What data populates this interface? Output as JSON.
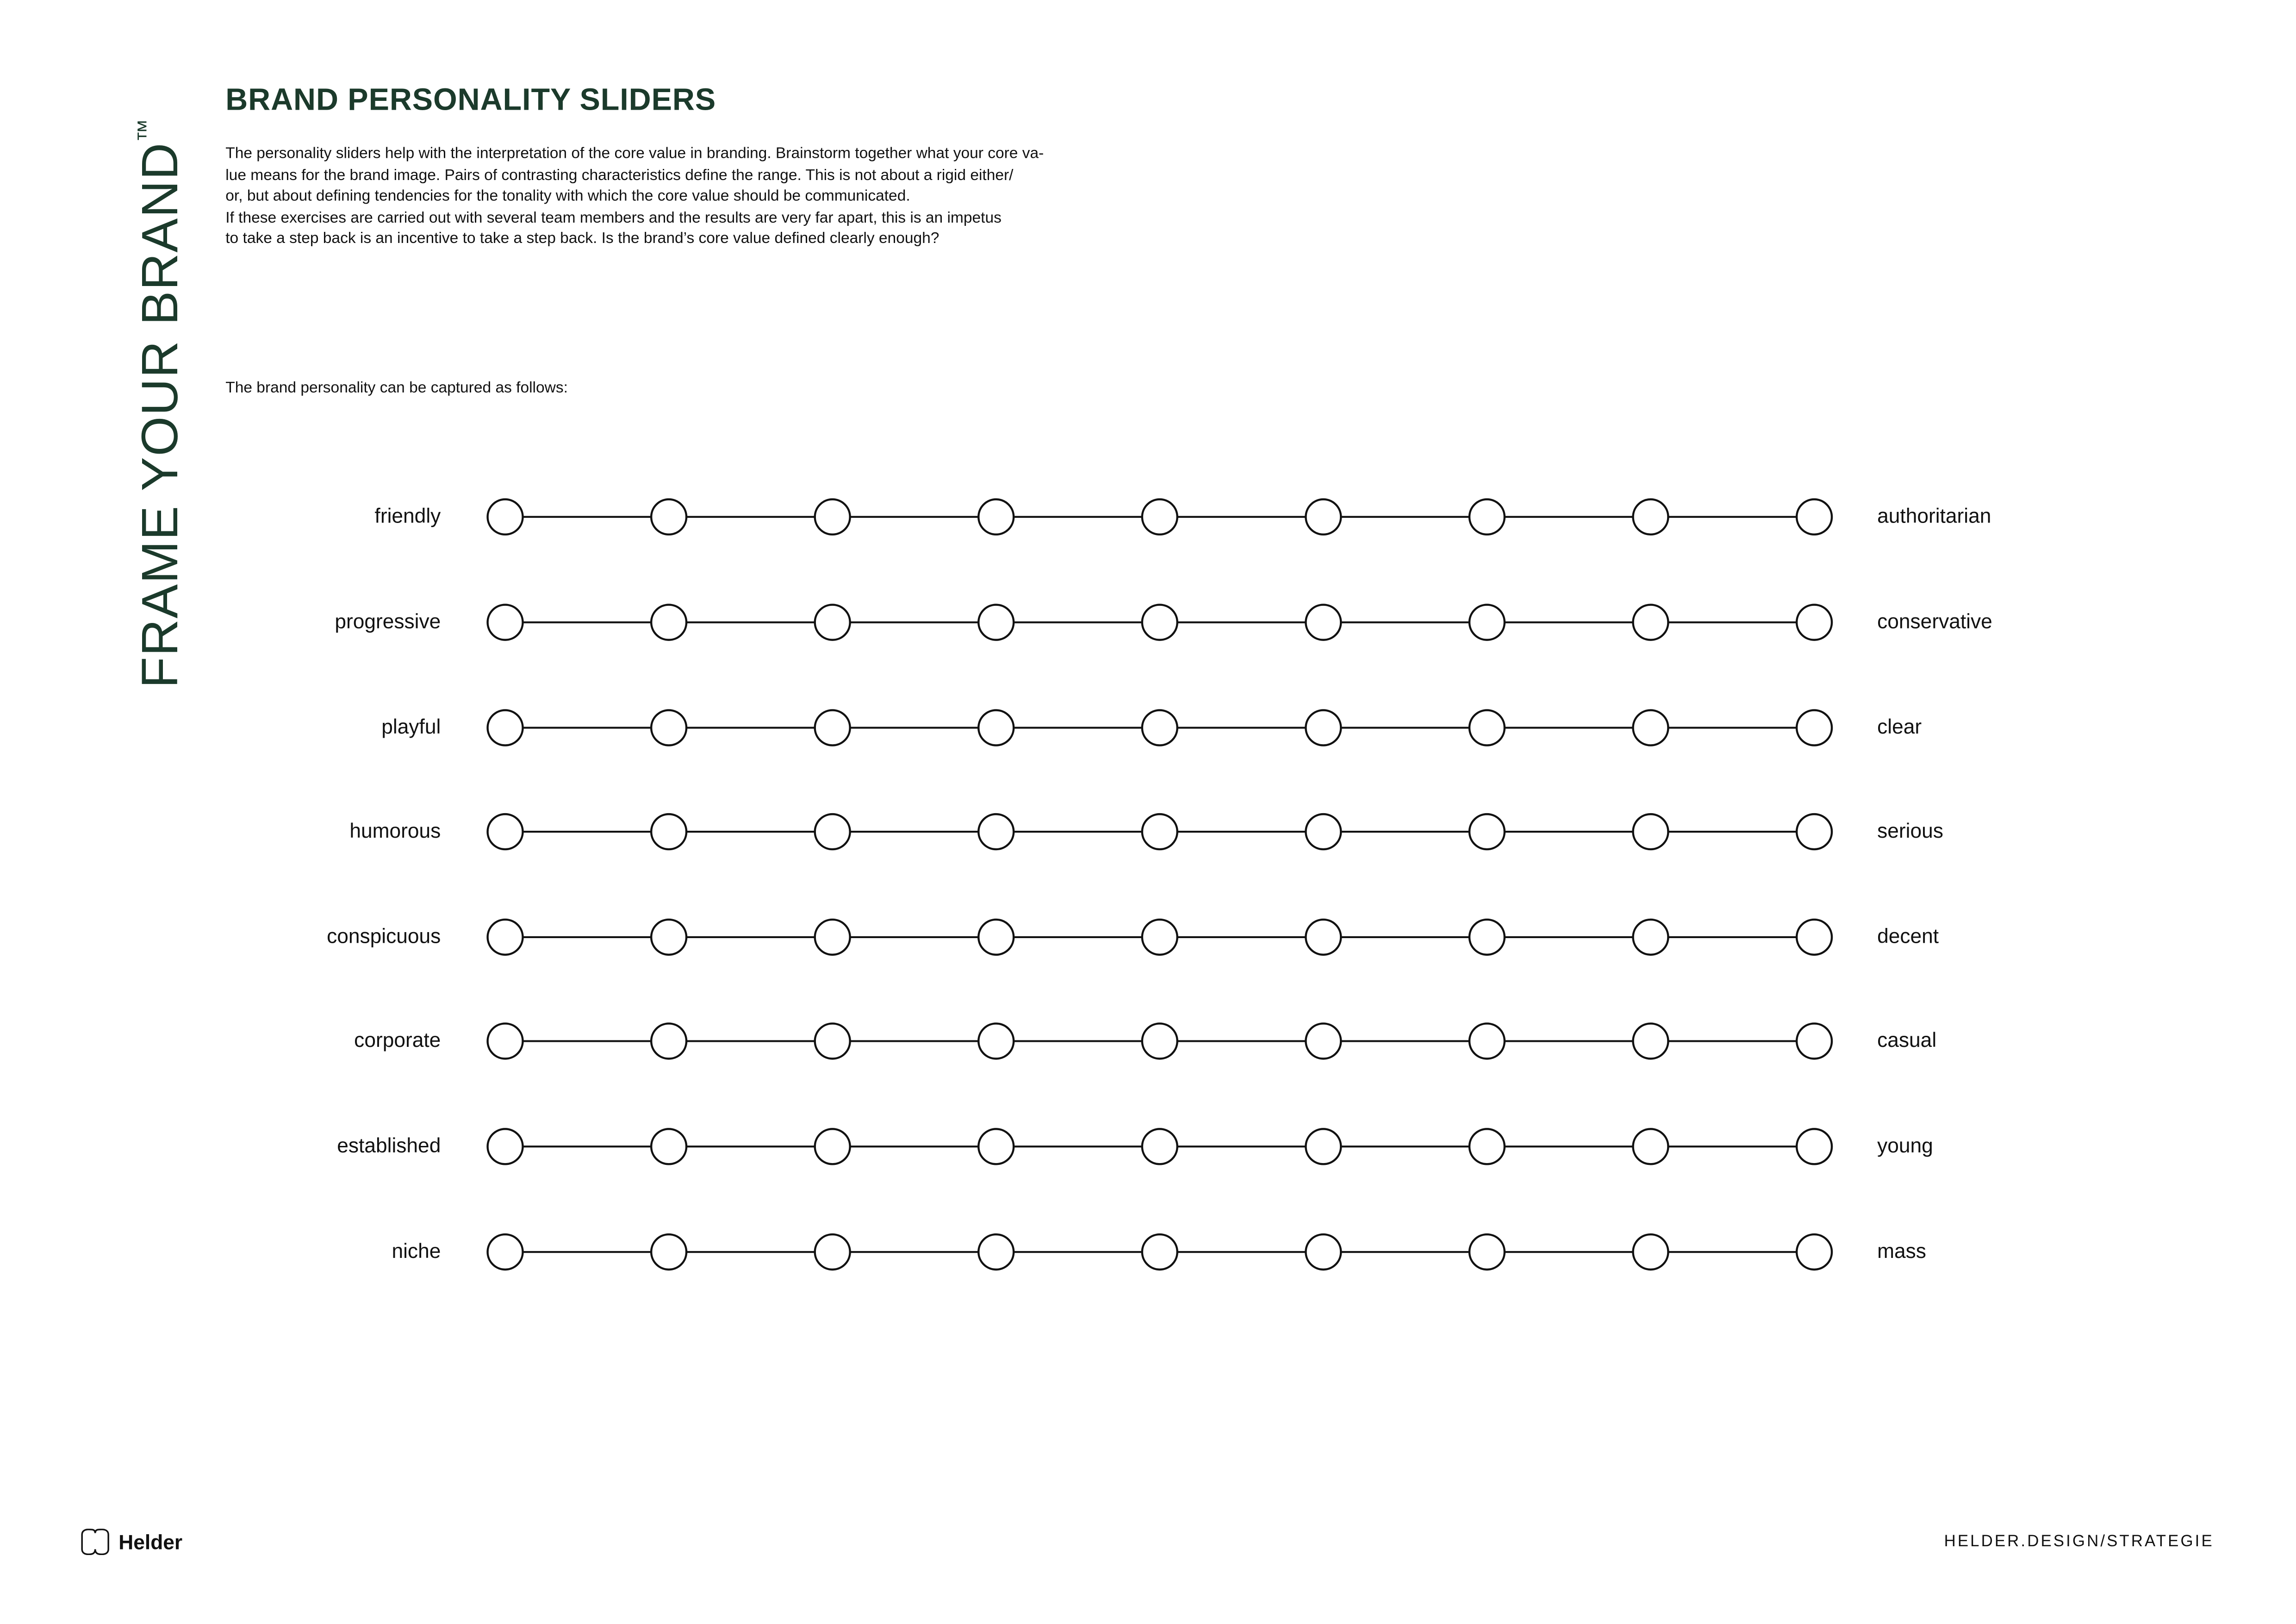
{
  "sidebar": {
    "vertical_title": "FRAME YOUR BRAND",
    "trademark": "™"
  },
  "header": {
    "title": "BRAND PERSONALITY SLIDERS"
  },
  "intro": {
    "lines": [
      "The personality sliders help with the interpretation of the core value in branding. Brainstorm together what your core va-",
      "lue means for the brand image. Pairs of contrasting characteristics define the range. This is not about a rigid either/",
      "or, but about defining tendencies for the tonality with which the core value should be communicated.",
      "If these exercises are carried out with several team members and the results are very far apart, this is an impetus",
      "to take a step back is an incentive to take a step back. Is the brand’s core value defined clearly enough?"
    ]
  },
  "lead": "The brand personality can be captured as follows:",
  "slider_steps": 9,
  "sliders": [
    {
      "left": "friendly",
      "right": "authoritarian"
    },
    {
      "left": "progressive",
      "right": "conservative"
    },
    {
      "left": "playful",
      "right": "clear"
    },
    {
      "left": "humorous",
      "right": "serious"
    },
    {
      "left": "conspicuous",
      "right": "decent"
    },
    {
      "left": "corporate",
      "right": "casual"
    },
    {
      "left": "established",
      "right": "young"
    },
    {
      "left": "niche",
      "right": "mass"
    }
  ],
  "footer": {
    "brand": "Helder",
    "logo_icon": "helder-logo-icon",
    "url": "HELDER.DESIGN/STRATEGIE"
  },
  "colors": {
    "accent": "#1b3a2b",
    "text": "#111111"
  }
}
